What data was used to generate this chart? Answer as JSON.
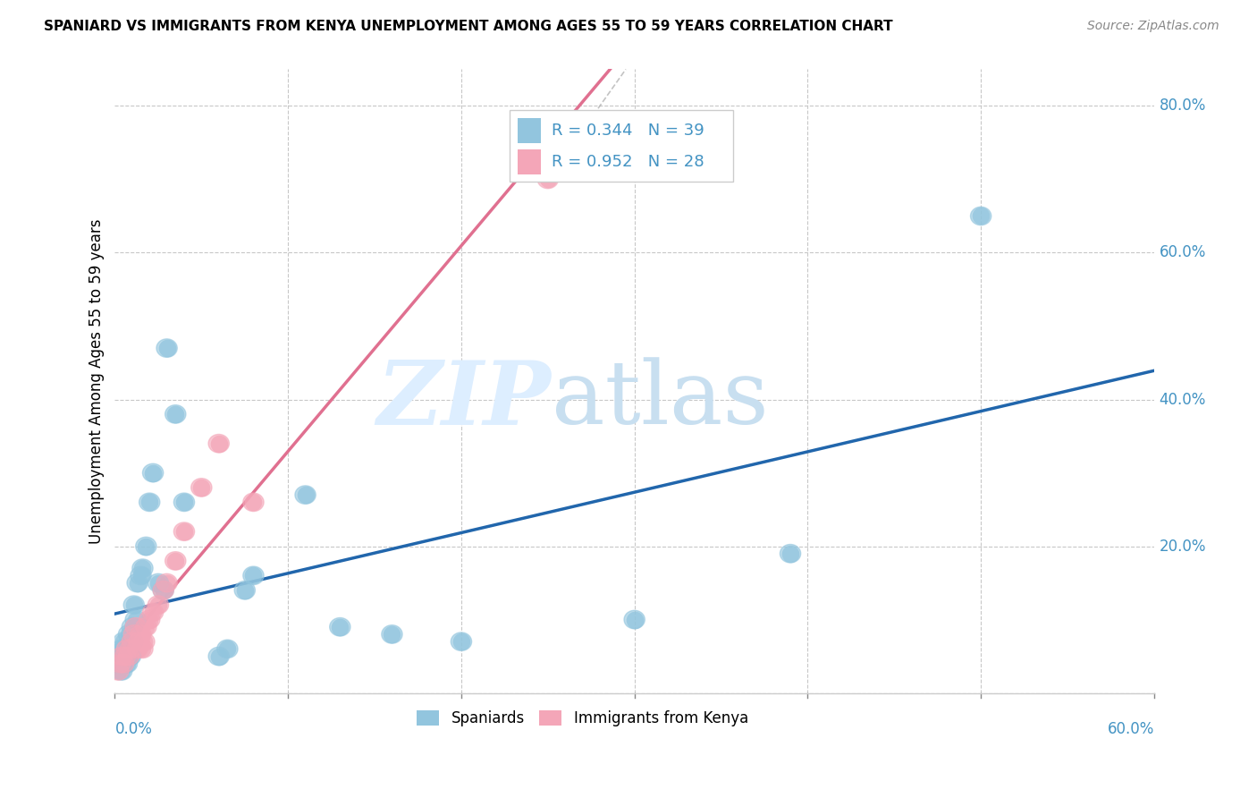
{
  "title": "SPANIARD VS IMMIGRANTS FROM KENYA UNEMPLOYMENT AMONG AGES 55 TO 59 YEARS CORRELATION CHART",
  "source": "Source: ZipAtlas.com",
  "ylabel": "Unemployment Among Ages 55 to 59 years",
  "legend_spaniards": "Spaniards",
  "legend_kenya": "Immigrants from Kenya",
  "r_spaniards": 0.344,
  "n_spaniards": 39,
  "r_kenya": 0.952,
  "n_kenya": 28,
  "color_spaniards": "#92c5de",
  "color_kenya": "#f4a6b8",
  "color_spaniards_line": "#2166ac",
  "color_kenya_line": "#e07090",
  "color_text_blue": "#4393c3",
  "background_color": "#ffffff",
  "grid_color": "#c8c8c8",
  "xlim": [
    0.0,
    0.6
  ],
  "ylim": [
    0.0,
    0.85
  ],
  "sp_x": [
    0.002,
    0.003,
    0.004,
    0.004,
    0.005,
    0.005,
    0.006,
    0.006,
    0.007,
    0.007,
    0.008,
    0.008,
    0.009,
    0.01,
    0.01,
    0.011,
    0.012,
    0.013,
    0.015,
    0.016,
    0.018,
    0.02,
    0.022,
    0.025,
    0.028,
    0.03,
    0.035,
    0.04,
    0.06,
    0.065,
    0.075,
    0.08,
    0.11,
    0.13,
    0.16,
    0.2,
    0.3,
    0.39,
    0.5
  ],
  "sp_y": [
    0.04,
    0.05,
    0.03,
    0.06,
    0.04,
    0.07,
    0.05,
    0.06,
    0.04,
    0.05,
    0.08,
    0.06,
    0.05,
    0.07,
    0.09,
    0.12,
    0.1,
    0.15,
    0.16,
    0.17,
    0.2,
    0.26,
    0.3,
    0.15,
    0.14,
    0.47,
    0.38,
    0.26,
    0.05,
    0.06,
    0.14,
    0.16,
    0.27,
    0.09,
    0.08,
    0.07,
    0.1,
    0.19,
    0.65
  ],
  "ke_x": [
    0.002,
    0.003,
    0.004,
    0.005,
    0.006,
    0.007,
    0.008,
    0.009,
    0.01,
    0.011,
    0.012,
    0.013,
    0.014,
    0.015,
    0.016,
    0.017,
    0.018,
    0.02,
    0.022,
    0.025,
    0.028,
    0.03,
    0.035,
    0.04,
    0.05,
    0.06,
    0.08,
    0.25
  ],
  "ke_y": [
    0.03,
    0.04,
    0.05,
    0.04,
    0.05,
    0.06,
    0.05,
    0.06,
    0.07,
    0.08,
    0.09,
    0.06,
    0.07,
    0.08,
    0.06,
    0.07,
    0.09,
    0.1,
    0.11,
    0.12,
    0.14,
    0.15,
    0.18,
    0.22,
    0.28,
    0.34,
    0.26,
    0.7
  ]
}
